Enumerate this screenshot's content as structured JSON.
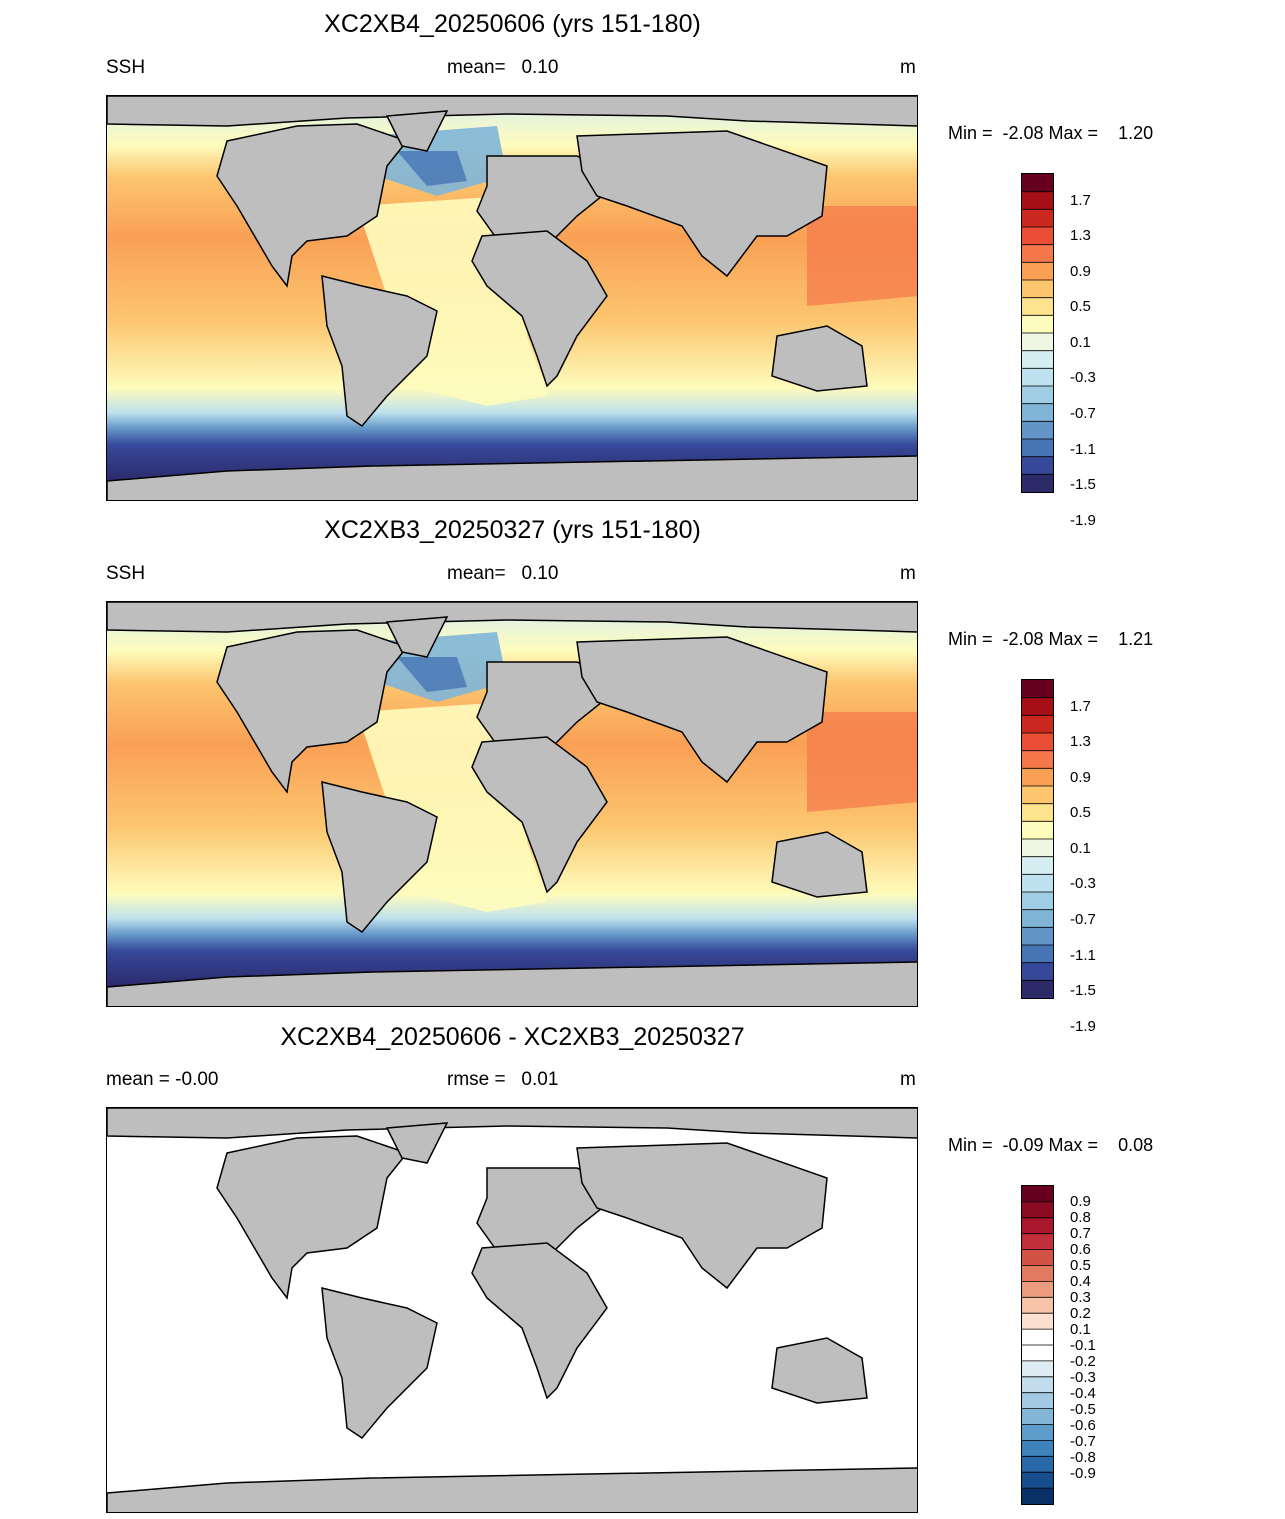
{
  "panels": [
    {
      "title": "XC2XB4_20250606 (yrs 151-180)",
      "left_label": "SSH",
      "mid_label": "mean=   0.10",
      "units": "m",
      "minmax": "Min =  -2.08 Max =    1.20",
      "colorbar": {
        "colors": [
          "#67001f",
          "#a50f15",
          "#cb2820",
          "#ea4f35",
          "#f4774a",
          "#f9a055",
          "#fcc56e",
          "#fde38e",
          "#fefcbd",
          "#eef7e4",
          "#d6eef2",
          "#bde1ee",
          "#9ecde4",
          "#80b5d8",
          "#6395c8",
          "#4674b4",
          "#35489a",
          "#2d2a6a"
        ],
        "tick_labels": [
          "1.7",
          "1.3",
          "0.9",
          "0.5",
          "0.1",
          "-0.3",
          "-0.7",
          "-1.1",
          "-1.5",
          "-1.9"
        ]
      }
    },
    {
      "title": "XC2XB3_20250327 (yrs 151-180)",
      "left_label": "SSH",
      "mid_label": "mean=   0.10",
      "units": "m",
      "minmax": "Min =  -2.08 Max =    1.21",
      "colorbar": {
        "colors": [
          "#67001f",
          "#a50f15",
          "#cb2820",
          "#ea4f35",
          "#f4774a",
          "#f9a055",
          "#fcc56e",
          "#fde38e",
          "#fefcbd",
          "#eef7e4",
          "#d6eef2",
          "#bde1ee",
          "#9ecde4",
          "#80b5d8",
          "#6395c8",
          "#4674b4",
          "#35489a",
          "#2d2a6a"
        ],
        "tick_labels": [
          "1.7",
          "1.3",
          "0.9",
          "0.5",
          "0.1",
          "-0.3",
          "-0.7",
          "-1.1",
          "-1.5",
          "-1.9"
        ]
      }
    },
    {
      "title": "XC2XB4_20250606 - XC2XB3_20250327",
      "left_label": "mean =  -0.00",
      "mid_label": "rmse =   0.01",
      "units": "m",
      "minmax": "Min =  -0.09 Max =    0.08",
      "colorbar": {
        "colors": [
          "#67001f",
          "#8a0b22",
          "#a8172c",
          "#c1303a",
          "#d25346",
          "#e17a5f",
          "#ec9c7e",
          "#f6c2a8",
          "#fbe0d1",
          "#ffffff",
          "#ffffff",
          "#deebf3",
          "#c2dced",
          "#a4cae3",
          "#84b6d8",
          "#5e9dcb",
          "#3e82bc",
          "#2867a8",
          "#164d8c",
          "#0a3167"
        ],
        "tick_labels": [
          "0.9",
          "0.8",
          "0.7",
          "0.6",
          "0.5",
          "0.4",
          "0.3",
          "0.2",
          "0.1",
          "-0.1",
          "-0.2",
          "-0.3",
          "-0.4",
          "-0.5",
          "-0.6",
          "-0.7",
          "-0.8",
          "-0.9"
        ]
      }
    }
  ]
}
